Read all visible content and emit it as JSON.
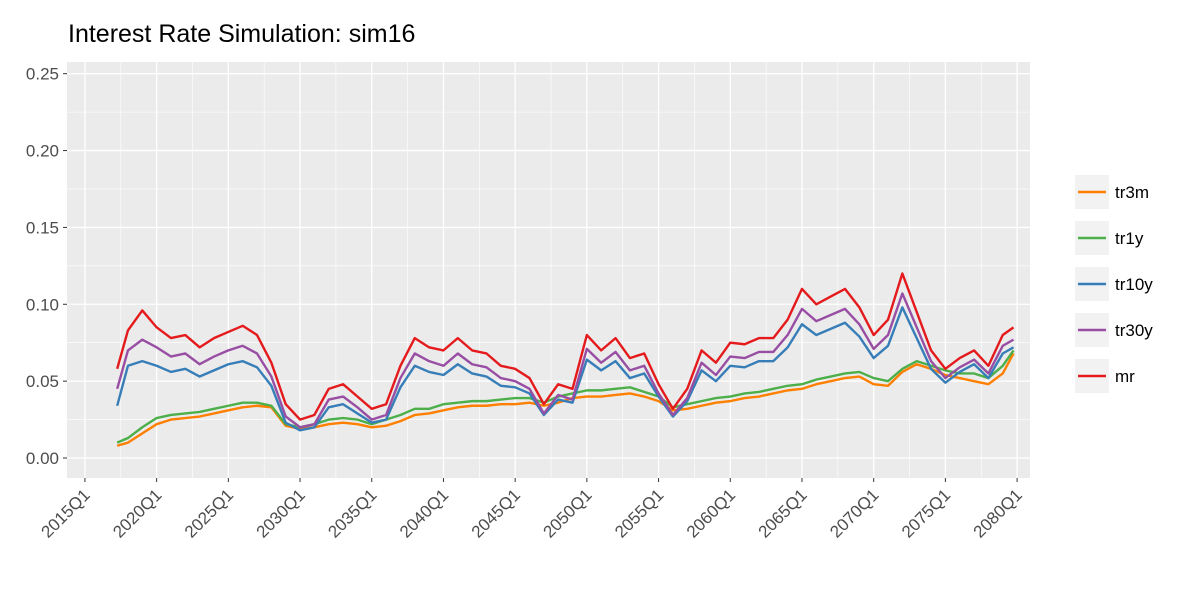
{
  "chart_data": {
    "type": "line",
    "title": "Interest Rate Simulation:  sim16",
    "x": [
      2017.25,
      2018,
      2019,
      2020,
      2021,
      2022,
      2023,
      2024,
      2025,
      2026,
      2027,
      2028,
      2029,
      2030,
      2031,
      2032,
      2033,
      2034,
      2035,
      2036,
      2037,
      2038,
      2039,
      2040,
      2041,
      2042,
      2043,
      2044,
      2045,
      2046,
      2047,
      2048,
      2049,
      2050,
      2051,
      2052,
      2053,
      2054,
      2055,
      2056,
      2057,
      2058,
      2059,
      2060,
      2061,
      2062,
      2063,
      2064,
      2065,
      2066,
      2067,
      2068,
      2069,
      2070,
      2071,
      2072,
      2073,
      2074,
      2075,
      2076,
      2077,
      2078,
      2079,
      2079.75
    ],
    "series": [
      {
        "name": "tr3m",
        "color": "#ff7f00",
        "values": [
          0.008,
          0.01,
          0.016,
          0.022,
          0.025,
          0.026,
          0.027,
          0.029,
          0.031,
          0.033,
          0.034,
          0.033,
          0.021,
          0.019,
          0.02,
          0.022,
          0.023,
          0.022,
          0.02,
          0.021,
          0.024,
          0.028,
          0.029,
          0.031,
          0.033,
          0.034,
          0.034,
          0.035,
          0.035,
          0.036,
          0.034,
          0.036,
          0.039,
          0.04,
          0.04,
          0.041,
          0.042,
          0.04,
          0.037,
          0.031,
          0.032,
          0.034,
          0.036,
          0.037,
          0.039,
          0.04,
          0.042,
          0.044,
          0.045,
          0.048,
          0.05,
          0.052,
          0.053,
          0.048,
          0.047,
          0.056,
          0.061,
          0.058,
          0.054,
          0.052,
          0.05,
          0.048,
          0.055,
          0.068
        ]
      },
      {
        "name": "tr1y",
        "color": "#4daf4a",
        "values": [
          0.01,
          0.013,
          0.02,
          0.026,
          0.028,
          0.029,
          0.03,
          0.032,
          0.034,
          0.036,
          0.036,
          0.034,
          0.022,
          0.02,
          0.022,
          0.025,
          0.026,
          0.025,
          0.022,
          0.025,
          0.028,
          0.032,
          0.032,
          0.035,
          0.036,
          0.037,
          0.037,
          0.038,
          0.039,
          0.039,
          0.036,
          0.04,
          0.042,
          0.044,
          0.044,
          0.045,
          0.046,
          0.043,
          0.04,
          0.033,
          0.035,
          0.037,
          0.039,
          0.04,
          0.042,
          0.043,
          0.045,
          0.047,
          0.048,
          0.051,
          0.053,
          0.055,
          0.056,
          0.052,
          0.05,
          0.058,
          0.063,
          0.06,
          0.057,
          0.055,
          0.055,
          0.052,
          0.06,
          0.07
        ]
      },
      {
        "name": "tr10y",
        "color": "#377eb8",
        "values": [
          0.034,
          0.06,
          0.063,
          0.06,
          0.056,
          0.058,
          0.053,
          0.057,
          0.061,
          0.063,
          0.059,
          0.047,
          0.023,
          0.018,
          0.02,
          0.033,
          0.035,
          0.029,
          0.023,
          0.025,
          0.046,
          0.06,
          0.056,
          0.054,
          0.061,
          0.055,
          0.053,
          0.047,
          0.046,
          0.042,
          0.028,
          0.038,
          0.036,
          0.064,
          0.057,
          0.063,
          0.052,
          0.055,
          0.04,
          0.027,
          0.037,
          0.057,
          0.05,
          0.06,
          0.059,
          0.063,
          0.063,
          0.072,
          0.087,
          0.08,
          0.084,
          0.088,
          0.079,
          0.065,
          0.073,
          0.098,
          0.078,
          0.058,
          0.049,
          0.056,
          0.061,
          0.052,
          0.068,
          0.072
        ]
      },
      {
        "name": "tr30y",
        "color": "#984ea3",
        "values": [
          0.045,
          0.07,
          0.077,
          0.072,
          0.066,
          0.068,
          0.061,
          0.066,
          0.07,
          0.073,
          0.068,
          0.053,
          0.027,
          0.02,
          0.022,
          0.038,
          0.04,
          0.033,
          0.025,
          0.028,
          0.052,
          0.068,
          0.063,
          0.06,
          0.068,
          0.061,
          0.059,
          0.052,
          0.05,
          0.045,
          0.029,
          0.041,
          0.038,
          0.071,
          0.062,
          0.069,
          0.057,
          0.06,
          0.042,
          0.028,
          0.039,
          0.062,
          0.054,
          0.066,
          0.065,
          0.069,
          0.069,
          0.08,
          0.097,
          0.089,
          0.093,
          0.097,
          0.087,
          0.071,
          0.08,
          0.107,
          0.085,
          0.063,
          0.052,
          0.059,
          0.064,
          0.055,
          0.073,
          0.077
        ]
      },
      {
        "name": "mr",
        "color": "#e41a1c",
        "values": [
          0.058,
          0.083,
          0.096,
          0.085,
          0.078,
          0.08,
          0.072,
          0.078,
          0.082,
          0.086,
          0.08,
          0.062,
          0.035,
          0.025,
          0.028,
          0.045,
          0.048,
          0.04,
          0.032,
          0.035,
          0.06,
          0.078,
          0.072,
          0.07,
          0.078,
          0.07,
          0.068,
          0.06,
          0.058,
          0.052,
          0.035,
          0.048,
          0.045,
          0.08,
          0.07,
          0.078,
          0.065,
          0.068,
          0.048,
          0.032,
          0.045,
          0.07,
          0.062,
          0.075,
          0.074,
          0.078,
          0.078,
          0.09,
          0.11,
          0.1,
          0.105,
          0.11,
          0.098,
          0.08,
          0.09,
          0.12,
          0.095,
          0.07,
          0.058,
          0.065,
          0.07,
          0.06,
          0.08,
          0.085
        ]
      }
    ],
    "xlim": [
      2013.75,
      2080.9
    ],
    "ylim": [
      -0.013,
      0.2576
    ],
    "xticks": [
      {
        "value": 2015,
        "label": "2015Q1"
      },
      {
        "value": 2020,
        "label": "2020Q1"
      },
      {
        "value": 2025,
        "label": "2025Q1"
      },
      {
        "value": 2030,
        "label": "2030Q1"
      },
      {
        "value": 2035,
        "label": "2035Q1"
      },
      {
        "value": 2040,
        "label": "2040Q1"
      },
      {
        "value": 2045,
        "label": "2045Q1"
      },
      {
        "value": 2050,
        "label": "2050Q1"
      },
      {
        "value": 2055,
        "label": "2055Q1"
      },
      {
        "value": 2060,
        "label": "2060Q1"
      },
      {
        "value": 2065,
        "label": "2065Q1"
      },
      {
        "value": 2070,
        "label": "2070Q1"
      },
      {
        "value": 2075,
        "label": "2075Q1"
      },
      {
        "value": 2080,
        "label": "2080Q1"
      }
    ],
    "yticks": [
      {
        "value": 0,
        "label": "0.00"
      },
      0.05,
      {
        "value": 0.1,
        "label": "0.10"
      },
      0.15,
      {
        "value": 0.2,
        "label": "0.20"
      },
      0.25
    ],
    "grid": true,
    "legend": "right"
  }
}
